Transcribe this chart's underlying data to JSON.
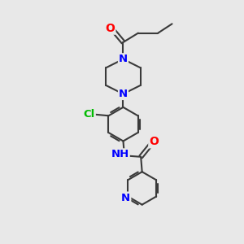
{
  "bg_color": "#e8e8e8",
  "bond_color": "#3a3a3a",
  "bond_width": 1.5,
  "atom_colors": {
    "O": "#ff0000",
    "N": "#0000ff",
    "Cl": "#00bb00",
    "C": "#3a3a3a"
  },
  "font_size": 8.5,
  "fig_size": [
    3.0,
    3.0
  ],
  "dpi": 100
}
